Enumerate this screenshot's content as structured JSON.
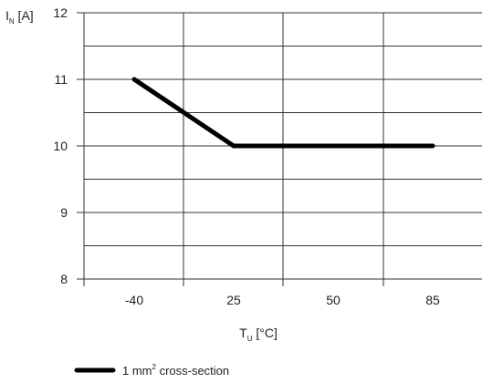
{
  "chart_data": {
    "type": "line",
    "y_axis": {
      "symbol": "I",
      "subscript": "N",
      "unit": " [A]"
    },
    "x_axis": {
      "symbol": "T",
      "subscript": "U",
      "unit": " [°C]"
    },
    "x_ticks": [
      "-40",
      "25",
      "50",
      "85"
    ],
    "y_ticks": [
      8,
      9,
      10,
      11,
      12
    ],
    "ylim": [
      8,
      12
    ],
    "grid": true,
    "series": [
      {
        "name": "1 mm² cross-section",
        "x": [
          "-40",
          "25",
          "50",
          "85"
        ],
        "y": [
          11,
          10,
          10,
          10
        ],
        "color": "#000000"
      }
    ],
    "legend": {
      "position": "bottom-left",
      "text_before": "1 mm",
      "superscript": "2",
      "text_after": " cross-section"
    }
  }
}
